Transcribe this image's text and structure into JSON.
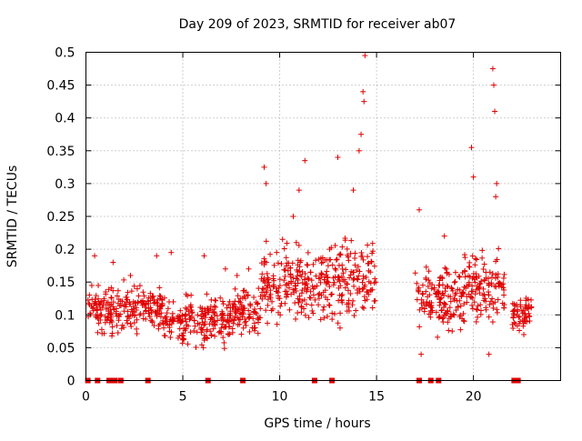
{
  "chart_data": {
    "type": "scatter",
    "title": "Day 209 of 2023, SRMTID for receiver ab07",
    "xlabel": "GPS time / hours",
    "ylabel": "SRMTID / TECUs",
    "xlim": [
      0,
      24.5
    ],
    "ylim": [
      0,
      0.5
    ],
    "grid": true,
    "xticks": [
      0,
      5,
      10,
      15,
      20
    ],
    "yticks": [
      0,
      0.05,
      0.1,
      0.15,
      0.2,
      0.25,
      0.3,
      0.35,
      0.4,
      0.45,
      0.5
    ],
    "xtick_labels": [
      "0",
      "5",
      "10",
      "15",
      "20"
    ],
    "ytick_labels": [
      "0",
      "0.05",
      "0.1",
      "0.15",
      "0.2",
      "0.25",
      "0.3",
      "0.35",
      "0.4",
      "0.45",
      "0.5"
    ],
    "marker": "+",
    "color": "#e00000",
    "baseline_zero_points_x": [
      0.1,
      0.6,
      1.2,
      1.4,
      1.5,
      1.8,
      3.2,
      6.3,
      8.1,
      11.8,
      12.7,
      17.2,
      17.8,
      18.2,
      22.1,
      22.3
    ],
    "clusters": [
      {
        "x_range": [
          0.1,
          4.0
        ],
        "y_min": 0.06,
        "y_max": 0.16,
        "peaks": [
          {
            "x": 0.45,
            "y": 0.19
          },
          {
            "x": 1.4,
            "y": 0.18
          },
          {
            "x": 3.65,
            "y": 0.19
          },
          {
            "x": 2.3,
            "y": 0.16
          }
        ]
      },
      {
        "x_range": [
          4.0,
          7.5
        ],
        "y_min": 0.04,
        "y_max": 0.14,
        "peaks": [
          {
            "x": 4.4,
            "y": 0.195
          },
          {
            "x": 6.1,
            "y": 0.19
          },
          {
            "x": 7.2,
            "y": 0.17
          }
        ]
      },
      {
        "x_range": [
          7.5,
          9.0
        ],
        "y_min": 0.06,
        "y_max": 0.15,
        "peaks": [
          {
            "x": 8.4,
            "y": 0.17
          },
          {
            "x": 7.8,
            "y": 0.16
          }
        ]
      },
      {
        "x_range": [
          9.0,
          12.0
        ],
        "y_min": 0.07,
        "y_max": 0.22,
        "peaks": [
          {
            "x": 9.2,
            "y": 0.325
          },
          {
            "x": 9.3,
            "y": 0.3
          },
          {
            "x": 11.3,
            "y": 0.335
          },
          {
            "x": 10.7,
            "y": 0.25
          },
          {
            "x": 11.0,
            "y": 0.29
          }
        ]
      },
      {
        "x_range": [
          12.0,
          15.0
        ],
        "y_min": 0.07,
        "y_max": 0.23,
        "peaks": [
          {
            "x": 13.0,
            "y": 0.34
          },
          {
            "x": 14.3,
            "y": 0.44
          },
          {
            "x": 14.4,
            "y": 0.495
          },
          {
            "x": 14.35,
            "y": 0.425
          },
          {
            "x": 14.2,
            "y": 0.375
          },
          {
            "x": 14.1,
            "y": 0.35
          },
          {
            "x": 13.8,
            "y": 0.29
          }
        ]
      },
      {
        "x_range": [
          17.0,
          19.5
        ],
        "y_min": 0.06,
        "y_max": 0.19,
        "peaks": [
          {
            "x": 17.2,
            "y": 0.26
          },
          {
            "x": 17.3,
            "y": 0.04
          },
          {
            "x": 18.5,
            "y": 0.22
          }
        ]
      },
      {
        "x_range": [
          19.5,
          21.6
        ],
        "y_min": 0.07,
        "y_max": 0.21,
        "peaks": [
          {
            "x": 19.9,
            "y": 0.355
          },
          {
            "x": 20.0,
            "y": 0.31
          },
          {
            "x": 21.0,
            "y": 0.475
          },
          {
            "x": 21.05,
            "y": 0.45
          },
          {
            "x": 21.1,
            "y": 0.41
          },
          {
            "x": 21.2,
            "y": 0.3
          },
          {
            "x": 21.15,
            "y": 0.28
          },
          {
            "x": 20.8,
            "y": 0.04
          }
        ]
      },
      {
        "x_range": [
          22.0,
          23.0
        ],
        "y_min": 0.07,
        "y_max": 0.14,
        "peaks": [
          {
            "x": 22.6,
            "y": 0.07
          }
        ]
      }
    ]
  }
}
